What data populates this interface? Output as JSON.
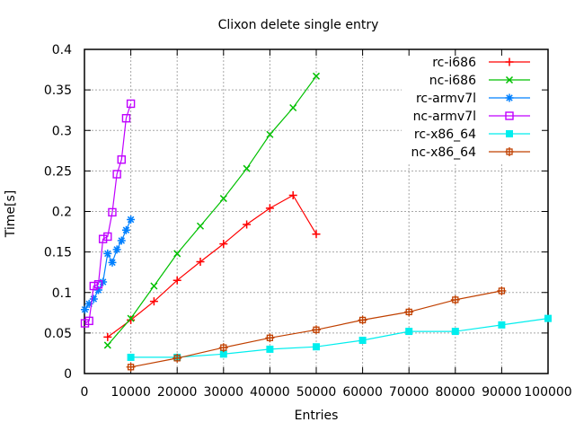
{
  "chart_data": {
    "type": "line",
    "title": "Clixon delete single entry",
    "xlabel": "Entries",
    "ylabel": "Time[s]",
    "xlim": [
      0,
      100000
    ],
    "ylim": [
      0,
      0.4
    ],
    "grid": true,
    "legend_position": "top-right-inside",
    "x_tick_values": [
      0,
      10000,
      20000,
      30000,
      40000,
      50000,
      60000,
      70000,
      80000,
      90000,
      100000
    ],
    "x_tick_labels": [
      "0",
      "10000",
      "20000",
      "30000",
      "40000",
      "50000",
      "60000",
      "70000",
      "80000",
      "90000",
      "100000"
    ],
    "y_tick_values": [
      0,
      0.05,
      0.1,
      0.15,
      0.2,
      0.25,
      0.3,
      0.35,
      0.4
    ],
    "y_tick_labels": [
      "0",
      "0.05",
      "0.1",
      "0.15",
      "0.2",
      "0.25",
      "0.3",
      "0.35",
      "0.4"
    ],
    "series": [
      {
        "name": "rc-i686",
        "color": "#ff0000",
        "marker": "plus",
        "x": [
          5000,
          10000,
          15000,
          20000,
          25000,
          30000,
          35000,
          40000,
          45000,
          50000
        ],
        "y": [
          0.045,
          0.066,
          0.089,
          0.115,
          0.138,
          0.16,
          0.184,
          0.204,
          0.22,
          0.172
        ]
      },
      {
        "name": "nc-i686",
        "color": "#00c000",
        "marker": "cross",
        "x": [
          5000,
          10000,
          15000,
          20000,
          25000,
          30000,
          35000,
          40000,
          45000,
          50000
        ],
        "y": [
          0.035,
          0.068,
          0.108,
          0.148,
          0.182,
          0.216,
          0.253,
          0.295,
          0.328,
          0.367
        ]
      },
      {
        "name": "rc-armv7l",
        "color": "#0080ff",
        "marker": "asterisk",
        "x": [
          100,
          1000,
          2000,
          3000,
          4000,
          5000,
          6000,
          7000,
          8000,
          9000,
          10000
        ],
        "y": [
          0.079,
          0.086,
          0.092,
          0.103,
          0.113,
          0.148,
          0.137,
          0.153,
          0.164,
          0.177,
          0.19
        ]
      },
      {
        "name": "nc-armv7l",
        "color": "#c000ff",
        "marker": "square-open",
        "x": [
          100,
          1000,
          2000,
          3000,
          4000,
          5000,
          6000,
          7000,
          8000,
          9000,
          10000
        ],
        "y": [
          0.062,
          0.065,
          0.108,
          0.11,
          0.166,
          0.169,
          0.199,
          0.246,
          0.264,
          0.315,
          0.333
        ]
      },
      {
        "name": "rc-x86_64",
        "color": "#00eeee",
        "marker": "square-filled",
        "x": [
          10000,
          20000,
          30000,
          40000,
          50000,
          60000,
          70000,
          80000,
          90000,
          100000
        ],
        "y": [
          0.02,
          0.02,
          0.024,
          0.03,
          0.033,
          0.041,
          0.052,
          0.052,
          0.06,
          0.068
        ]
      },
      {
        "name": "nc-x86_64",
        "color": "#c04000",
        "marker": "square-plus",
        "x": [
          10000,
          20000,
          30000,
          40000,
          50000,
          60000,
          70000,
          80000,
          90000
        ],
        "y": [
          0.008,
          0.019,
          0.032,
          0.044,
          0.054,
          0.066,
          0.076,
          0.091,
          0.102
        ]
      }
    ]
  }
}
